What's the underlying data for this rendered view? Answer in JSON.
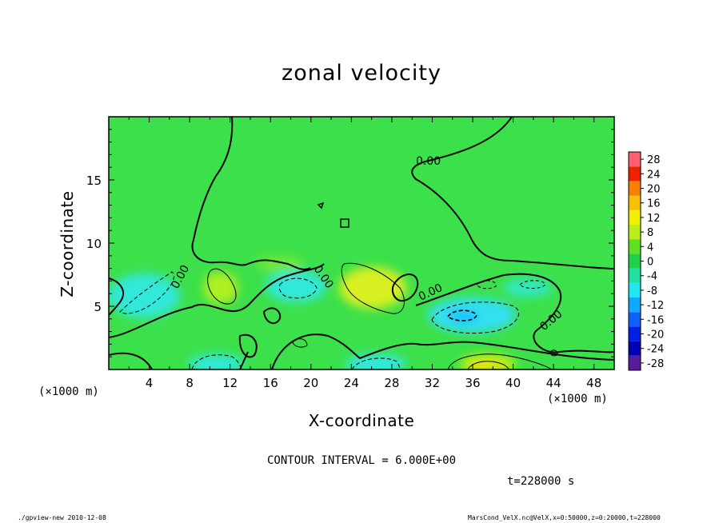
{
  "chart_data": {
    "type": "heatmap",
    "title": "zonal velocity",
    "xlabel": "X-coordinate",
    "ylabel": "Z-coordinate",
    "x_unit_left": "(×1000 m)",
    "x_unit_right": "(×1000 m)",
    "xlim": [
      0,
      50
    ],
    "ylim": [
      0,
      20
    ],
    "x_ticks": [
      4,
      8,
      12,
      16,
      20,
      24,
      28,
      32,
      36,
      40,
      44,
      48
    ],
    "y_ticks": [
      5,
      10,
      15
    ],
    "colorbar": {
      "levels": [
        -28,
        -24,
        -20,
        -16,
        -12,
        -8,
        -4,
        0,
        4,
        8,
        12,
        16,
        20,
        24,
        28
      ],
      "colors": [
        "#5a1a9c",
        "#0000b8",
        "#0020e8",
        "#1060ff",
        "#10a8ff",
        "#20e8f0",
        "#20e0a0",
        "#20d048",
        "#60e020",
        "#b8f018",
        "#f0f000",
        "#f8c000",
        "#f88000",
        "#f02000",
        "#ff6070"
      ]
    },
    "contour_label": "0.00",
    "contour_interval_text": "CONTOUR INTERVAL = 6.000E+00",
    "time_text": "t=228000 s"
  },
  "footer": {
    "left": "./gpview-new  2010-12-08",
    "right": "MarsCond_VelX.nc@VelX,x=0:50000,z=0:20000,t=228000"
  }
}
